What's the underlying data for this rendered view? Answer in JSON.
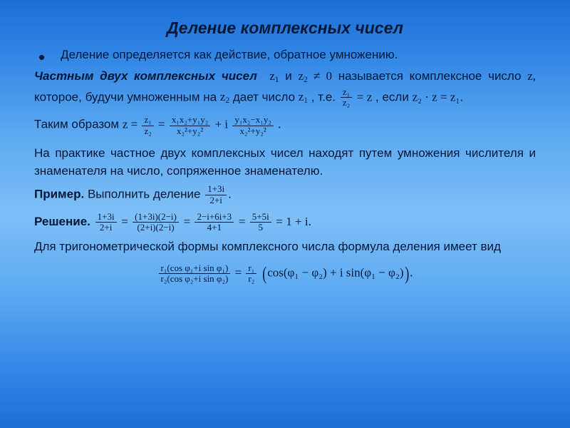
{
  "background": {
    "gradient_stops": [
      "#1b6dd6",
      "#2f84e4",
      "#59a7f1",
      "#7fbff7",
      "#59a7f1",
      "#2f84e4",
      "#1b6dd6"
    ]
  },
  "text_color": "#001838",
  "title": {
    "text": "Деление комплексных чисел",
    "fontsize": 23,
    "italic": true,
    "bold": true
  },
  "intro": "Деление определяется как действие, обратное умножению.",
  "definition": {
    "lead_bold": "Частным двух комплексных чисел",
    "part1": " и ",
    "part2": " называется комплексное число ",
    "part3": " которое, будучи умноженным на ",
    "part4": " дает число ",
    "part5": " , т.е. ",
    "part6": ", если ",
    "z1": "z",
    "z1_sub": "1",
    "z2": "z",
    "z2_sub": "2",
    "ne0": " ≠ 0",
    "z": "z,",
    "zplain": "z",
    "eq1_mid": " = ",
    "eq2": "z₂ · z = z₁",
    "dot": "."
  },
  "thus": {
    "lead": "Таким образом ",
    "z_eq": "z = ",
    "frac1_num": "z₁",
    "frac1_den": "z₂",
    "eq": " = ",
    "frac2_num": "x₁x₂+y₁y₂",
    "frac2_den": "x₂²+y₂²",
    "plus_i": " + i ",
    "frac3_num": "y₁x₂−x₁y₂",
    "frac3_den": "x₂²+y₂²",
    "dot": "."
  },
  "practice": "На практике частное двух комплексных чисел находят путем умножения числителя и знаменателя на число, сопряженное знаменателю.",
  "example": {
    "label_bold": "Пример.",
    "text": " Выполнить деление  ",
    "frac_num": "1+3i",
    "frac_den": "2+i",
    "dot": "."
  },
  "solution": {
    "label_bold": "Решение.",
    "lead": "  ",
    "f1_num": "1+3i",
    "f1_den": "2+i",
    "eq": " = ",
    "f2_num": "(1+3i)(2−i)",
    "f2_den": "(2+i)(2−i)",
    "f3_num": "2−i+6i+3",
    "f3_den": "4+1",
    "f4_num": "5+5i",
    "f4_den": "5",
    "result": " = 1 + i."
  },
  "trig_intro": "Для тригонометрической формы комплексного числа формула деления имеет вид",
  "trig_formula": {
    "lhs_num": "r₁(cos φ₁+i sin φ₁)",
    "lhs_den": "r₂(cos φ₂+i sin φ₂)",
    "eq": " = ",
    "rfrac_num": "r₁",
    "rfrac_den": "r₂",
    "rhs": "cos(φ₁ − φ₂) + i sin(φ₁ − φ₂)",
    "dot": "."
  },
  "typography": {
    "body_fontsize": 17,
    "frac_small_fontsize": 13,
    "font_family_body": "Arial",
    "font_family_math": "Georgia"
  }
}
